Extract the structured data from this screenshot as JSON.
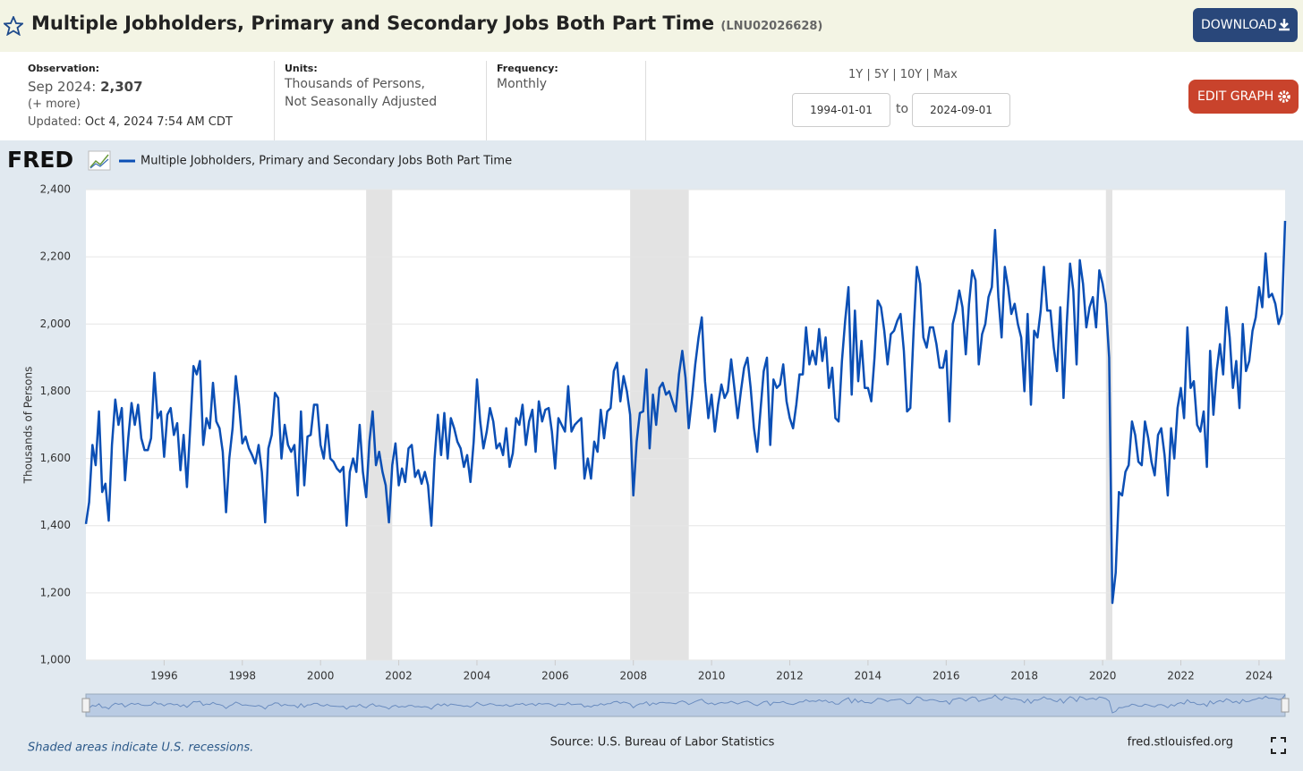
{
  "header": {
    "title": "Multiple Jobholders, Primary and Secondary Jobs Both Part Time",
    "series_id": "(LNU02026628)",
    "download": "DOWNLOAD"
  },
  "info": {
    "observation_label": "Observation:",
    "observation_date": "Sep 2024:",
    "observation_value": "2,307",
    "more": "(+ more)",
    "updated_label": "Updated:",
    "updated": "Oct 4, 2024 7:54 AM CDT",
    "units_label": "Units:",
    "units_1": "Thousands of Persons,",
    "units_2": "Not Seasonally Adjusted",
    "frequency_label": "Frequency:",
    "frequency": "Monthly",
    "ranges": [
      "1Y",
      "5Y",
      "10Y",
      "Max"
    ],
    "start_date": "1994-01-01",
    "to": "to",
    "end_date": "2024-09-01",
    "edit": "EDIT GRAPH"
  },
  "footer": {
    "recession_note": "Shaded areas indicate U.S. recessions.",
    "source": "Source: U.S. Bureau of Labor Statistics",
    "site": "fred.stlouisfed.org"
  },
  "chart_data": {
    "type": "line",
    "logo": "FRED",
    "y_label": "Thousands of Persons",
    "xlim": [
      "1994-01",
      "2024-09"
    ],
    "xticks": [
      1996,
      1998,
      2000,
      2002,
      2004,
      2006,
      2008,
      2010,
      2012,
      2014,
      2016,
      2018,
      2020,
      2022,
      2024
    ],
    "ylim": [
      1000,
      2400
    ],
    "yticks": [
      {
        "value": 1000,
        "label": "1,000"
      },
      {
        "value": 1200,
        "label": "1,200"
      },
      {
        "value": 1400,
        "label": "1,400"
      },
      {
        "value": 1600,
        "label": "1,600"
      },
      {
        "value": 1800,
        "label": "1,800"
      },
      {
        "value": 2000,
        "label": "2,000"
      },
      {
        "value": 2200,
        "label": "2,200"
      },
      {
        "value": 2400,
        "label": "2,400"
      }
    ],
    "grid": true,
    "recessions": [
      [
        "2001-03",
        "2001-11"
      ],
      [
        "2007-12",
        "2009-06"
      ],
      [
        "2020-02",
        "2020-04"
      ]
    ],
    "x": [
      "1994-01",
      "1994-02",
      "1994-03",
      "1994-04",
      "1994-05",
      "1994-06",
      "1994-07",
      "1994-08",
      "1994-09",
      "1994-10",
      "1994-11",
      "1994-12",
      "1995-01",
      "1995-02",
      "1995-03",
      "1995-04",
      "1995-05",
      "1995-06",
      "1995-07",
      "1995-08",
      "1995-09",
      "1995-10",
      "1995-11",
      "1995-12",
      "1996-01",
      "1996-02",
      "1996-03",
      "1996-04",
      "1996-05",
      "1996-06",
      "1996-07",
      "1996-08",
      "1996-09",
      "1996-10",
      "1996-11",
      "1996-12",
      "1997-01",
      "1997-02",
      "1997-03",
      "1997-04",
      "1997-05",
      "1997-06",
      "1997-07",
      "1997-08",
      "1997-09",
      "1997-10",
      "1997-11",
      "1997-12",
      "1998-01",
      "1998-02",
      "1998-03",
      "1998-04",
      "1998-05",
      "1998-06",
      "1998-07",
      "1998-08",
      "1998-09",
      "1998-10",
      "1998-11",
      "1998-12",
      "1999-01",
      "1999-02",
      "1999-03",
      "1999-04",
      "1999-05",
      "1999-06",
      "1999-07",
      "1999-08",
      "1999-09",
      "1999-10",
      "1999-11",
      "1999-12",
      "2000-01",
      "2000-02",
      "2000-03",
      "2000-04",
      "2000-05",
      "2000-06",
      "2000-07",
      "2000-08",
      "2000-09",
      "2000-10",
      "2000-11",
      "2000-12",
      "2001-01",
      "2001-02",
      "2001-03",
      "2001-04",
      "2001-05",
      "2001-06",
      "2001-07",
      "2001-08",
      "2001-09",
      "2001-10",
      "2001-11",
      "2001-12",
      "2002-01",
      "2002-02",
      "2002-03",
      "2002-04",
      "2002-05",
      "2002-06",
      "2002-07",
      "2002-08",
      "2002-09",
      "2002-10",
      "2002-11",
      "2002-12",
      "2003-01",
      "2003-02",
      "2003-03",
      "2003-04",
      "2003-05",
      "2003-06",
      "2003-07",
      "2003-08",
      "2003-09",
      "2003-10",
      "2003-11",
      "2003-12",
      "2004-01",
      "2004-02",
      "2004-03",
      "2004-04",
      "2004-05",
      "2004-06",
      "2004-07",
      "2004-08",
      "2004-09",
      "2004-10",
      "2004-11",
      "2004-12",
      "2005-01",
      "2005-02",
      "2005-03",
      "2005-04",
      "2005-05",
      "2005-06",
      "2005-07",
      "2005-08",
      "2005-09",
      "2005-10",
      "2005-11",
      "2005-12",
      "2006-01",
      "2006-02",
      "2006-03",
      "2006-04",
      "2006-05",
      "2006-06",
      "2006-07",
      "2006-08",
      "2006-09",
      "2006-10",
      "2006-11",
      "2006-12",
      "2007-01",
      "2007-02",
      "2007-03",
      "2007-04",
      "2007-05",
      "2007-06",
      "2007-07",
      "2007-08",
      "2007-09",
      "2007-10",
      "2007-11",
      "2007-12",
      "2008-01",
      "2008-02",
      "2008-03",
      "2008-04",
      "2008-05",
      "2008-06",
      "2008-07",
      "2008-08",
      "2008-09",
      "2008-10",
      "2008-11",
      "2008-12",
      "2009-01",
      "2009-02",
      "2009-03",
      "2009-04",
      "2009-05",
      "2009-06",
      "2009-07",
      "2009-08",
      "2009-09",
      "2009-10",
      "2009-11",
      "2009-12",
      "2010-01",
      "2010-02",
      "2010-03",
      "2010-04",
      "2010-05",
      "2010-06",
      "2010-07",
      "2010-08",
      "2010-09",
      "2010-10",
      "2010-11",
      "2010-12",
      "2011-01",
      "2011-02",
      "2011-03",
      "2011-04",
      "2011-05",
      "2011-06",
      "2011-07",
      "2011-08",
      "2011-09",
      "2011-10",
      "2011-11",
      "2011-12",
      "2012-01",
      "2012-02",
      "2012-03",
      "2012-04",
      "2012-05",
      "2012-06",
      "2012-07",
      "2012-08",
      "2012-09",
      "2012-10",
      "2012-11",
      "2012-12",
      "2013-01",
      "2013-02",
      "2013-03",
      "2013-04",
      "2013-05",
      "2013-06",
      "2013-07",
      "2013-08",
      "2013-09",
      "2013-10",
      "2013-11",
      "2013-12",
      "2014-01",
      "2014-02",
      "2014-03",
      "2014-04",
      "2014-05",
      "2014-06",
      "2014-07",
      "2014-08",
      "2014-09",
      "2014-10",
      "2014-11",
      "2014-12",
      "2015-01",
      "2015-02",
      "2015-03",
      "2015-04",
      "2015-05",
      "2015-06",
      "2015-07",
      "2015-08",
      "2015-09",
      "2015-10",
      "2015-11",
      "2015-12",
      "2016-01",
      "2016-02",
      "2016-03",
      "2016-04",
      "2016-05",
      "2016-06",
      "2016-07",
      "2016-08",
      "2016-09",
      "2016-10",
      "2016-11",
      "2016-12",
      "2017-01",
      "2017-02",
      "2017-03",
      "2017-04",
      "2017-05",
      "2017-06",
      "2017-07",
      "2017-08",
      "2017-09",
      "2017-10",
      "2017-11",
      "2017-12",
      "2018-01",
      "2018-02",
      "2018-03",
      "2018-04",
      "2018-05",
      "2018-06",
      "2018-07",
      "2018-08",
      "2018-09",
      "2018-10",
      "2018-11",
      "2018-12",
      "2019-01",
      "2019-02",
      "2019-03",
      "2019-04",
      "2019-05",
      "2019-06",
      "2019-07",
      "2019-08",
      "2019-09",
      "2019-10",
      "2019-11",
      "2019-12",
      "2020-01",
      "2020-02",
      "2020-03",
      "2020-04",
      "2020-05",
      "2020-06",
      "2020-07",
      "2020-08",
      "2020-09",
      "2020-10",
      "2020-11",
      "2020-12",
      "2021-01",
      "2021-02",
      "2021-03",
      "2021-04",
      "2021-05",
      "2021-06",
      "2021-07",
      "2021-08",
      "2021-09",
      "2021-10",
      "2021-11",
      "2021-12",
      "2022-01",
      "2022-02",
      "2022-03",
      "2022-04",
      "2022-05",
      "2022-06",
      "2022-07",
      "2022-08",
      "2022-09",
      "2022-10",
      "2022-11",
      "2022-12",
      "2023-01",
      "2023-02",
      "2023-03",
      "2023-04",
      "2023-05",
      "2023-06",
      "2023-07",
      "2023-08",
      "2023-09",
      "2023-10",
      "2023-11",
      "2023-12",
      "2024-01",
      "2024-02",
      "2024-03",
      "2024-04",
      "2024-05",
      "2024-06",
      "2024-07",
      "2024-08",
      "2024-09"
    ],
    "series": [
      {
        "name": "Multiple Jobholders, Primary and Secondary Jobs Both Part Time",
        "color": "#0b4fb5",
        "values": [
          1405,
          1470,
          1640,
          1580,
          1740,
          1500,
          1525,
          1415,
          1640,
          1775,
          1700,
          1750,
          1535,
          1660,
          1765,
          1700,
          1760,
          1660,
          1625,
          1625,
          1660,
          1855,
          1720,
          1740,
          1605,
          1730,
          1750,
          1670,
          1705,
          1565,
          1670,
          1515,
          1690,
          1875,
          1850,
          1890,
          1640,
          1720,
          1690,
          1825,
          1710,
          1690,
          1620,
          1440,
          1600,
          1690,
          1845,
          1760,
          1645,
          1665,
          1630,
          1610,
          1585,
          1640,
          1560,
          1410,
          1630,
          1670,
          1795,
          1780,
          1600,
          1700,
          1640,
          1620,
          1640,
          1490,
          1740,
          1520,
          1665,
          1670,
          1760,
          1760,
          1640,
          1600,
          1700,
          1600,
          1590,
          1570,
          1560,
          1575,
          1400,
          1560,
          1600,
          1560,
          1700,
          1560,
          1485,
          1650,
          1740,
          1580,
          1620,
          1560,
          1520,
          1410,
          1580,
          1645,
          1520,
          1570,
          1530,
          1630,
          1640,
          1545,
          1565,
          1525,
          1560,
          1520,
          1400,
          1600,
          1730,
          1610,
          1735,
          1600,
          1720,
          1690,
          1650,
          1630,
          1575,
          1610,
          1530,
          1650,
          1835,
          1710,
          1630,
          1680,
          1750,
          1710,
          1630,
          1645,
          1610,
          1690,
          1575,
          1615,
          1720,
          1700,
          1760,
          1640,
          1710,
          1745,
          1620,
          1770,
          1710,
          1745,
          1750,
          1680,
          1570,
          1720,
          1700,
          1680,
          1815,
          1680,
          1700,
          1710,
          1720,
          1540,
          1600,
          1540,
          1650,
          1620,
          1745,
          1660,
          1740,
          1750,
          1860,
          1885,
          1770,
          1845,
          1800,
          1730,
          1490,
          1650,
          1735,
          1740,
          1865,
          1630,
          1790,
          1700,
          1810,
          1825,
          1790,
          1800,
          1770,
          1740,
          1850,
          1920,
          1840,
          1690,
          1780,
          1880,
          1960,
          2020,
          1830,
          1720,
          1790,
          1680,
          1760,
          1820,
          1780,
          1800,
          1895,
          1810,
          1720,
          1800,
          1870,
          1900,
          1810,
          1690,
          1620,
          1740,
          1860,
          1900,
          1640,
          1835,
          1810,
          1820,
          1880,
          1770,
          1720,
          1690,
          1760,
          1850,
          1850,
          1990,
          1880,
          1920,
          1880,
          1985,
          1890,
          1960,
          1810,
          1870,
          1720,
          1710,
          1890,
          2010,
          2110,
          1790,
          2040,
          1830,
          1950,
          1810,
          1810,
          1770,
          1900,
          2070,
          2050,
          1980,
          1880,
          1970,
          1980,
          2010,
          2030,
          1920,
          1740,
          1750,
          1980,
          2170,
          2120,
          1960,
          1930,
          1990,
          1990,
          1940,
          1870,
          1870,
          1920,
          1710,
          2000,
          2040,
          2100,
          2050,
          1910,
          2060,
          2160,
          2130,
          1880,
          1970,
          2000,
          2080,
          2110,
          2280,
          2080,
          1960,
          2170,
          2110,
          2030,
          2060,
          2000,
          1960,
          1800,
          2030,
          1760,
          1980,
          1960,
          2040,
          2170,
          2040,
          2040,
          1930,
          1860,
          2050,
          1780,
          2000,
          2180,
          2100,
          1880,
          2190,
          2120,
          1990,
          2050,
          2080,
          1990,
          2160,
          2120,
          2060,
          1900,
          1170,
          1260,
          1500,
          1490,
          1560,
          1580,
          1710,
          1670,
          1590,
          1580,
          1710,
          1660,
          1590,
          1550,
          1670,
          1690,
          1610,
          1490,
          1690,
          1600,
          1750,
          1810,
          1720,
          1990,
          1810,
          1830,
          1700,
          1680,
          1740,
          1575,
          1920,
          1730,
          1860,
          1940,
          1850,
          2050,
          1960,
          1810,
          1890,
          1750,
          2000,
          1860,
          1890,
          1980,
          2020,
          2110,
          2050,
          2210,
          2080,
          2090,
          2060,
          2000,
          2030,
          2307
        ]
      }
    ]
  }
}
